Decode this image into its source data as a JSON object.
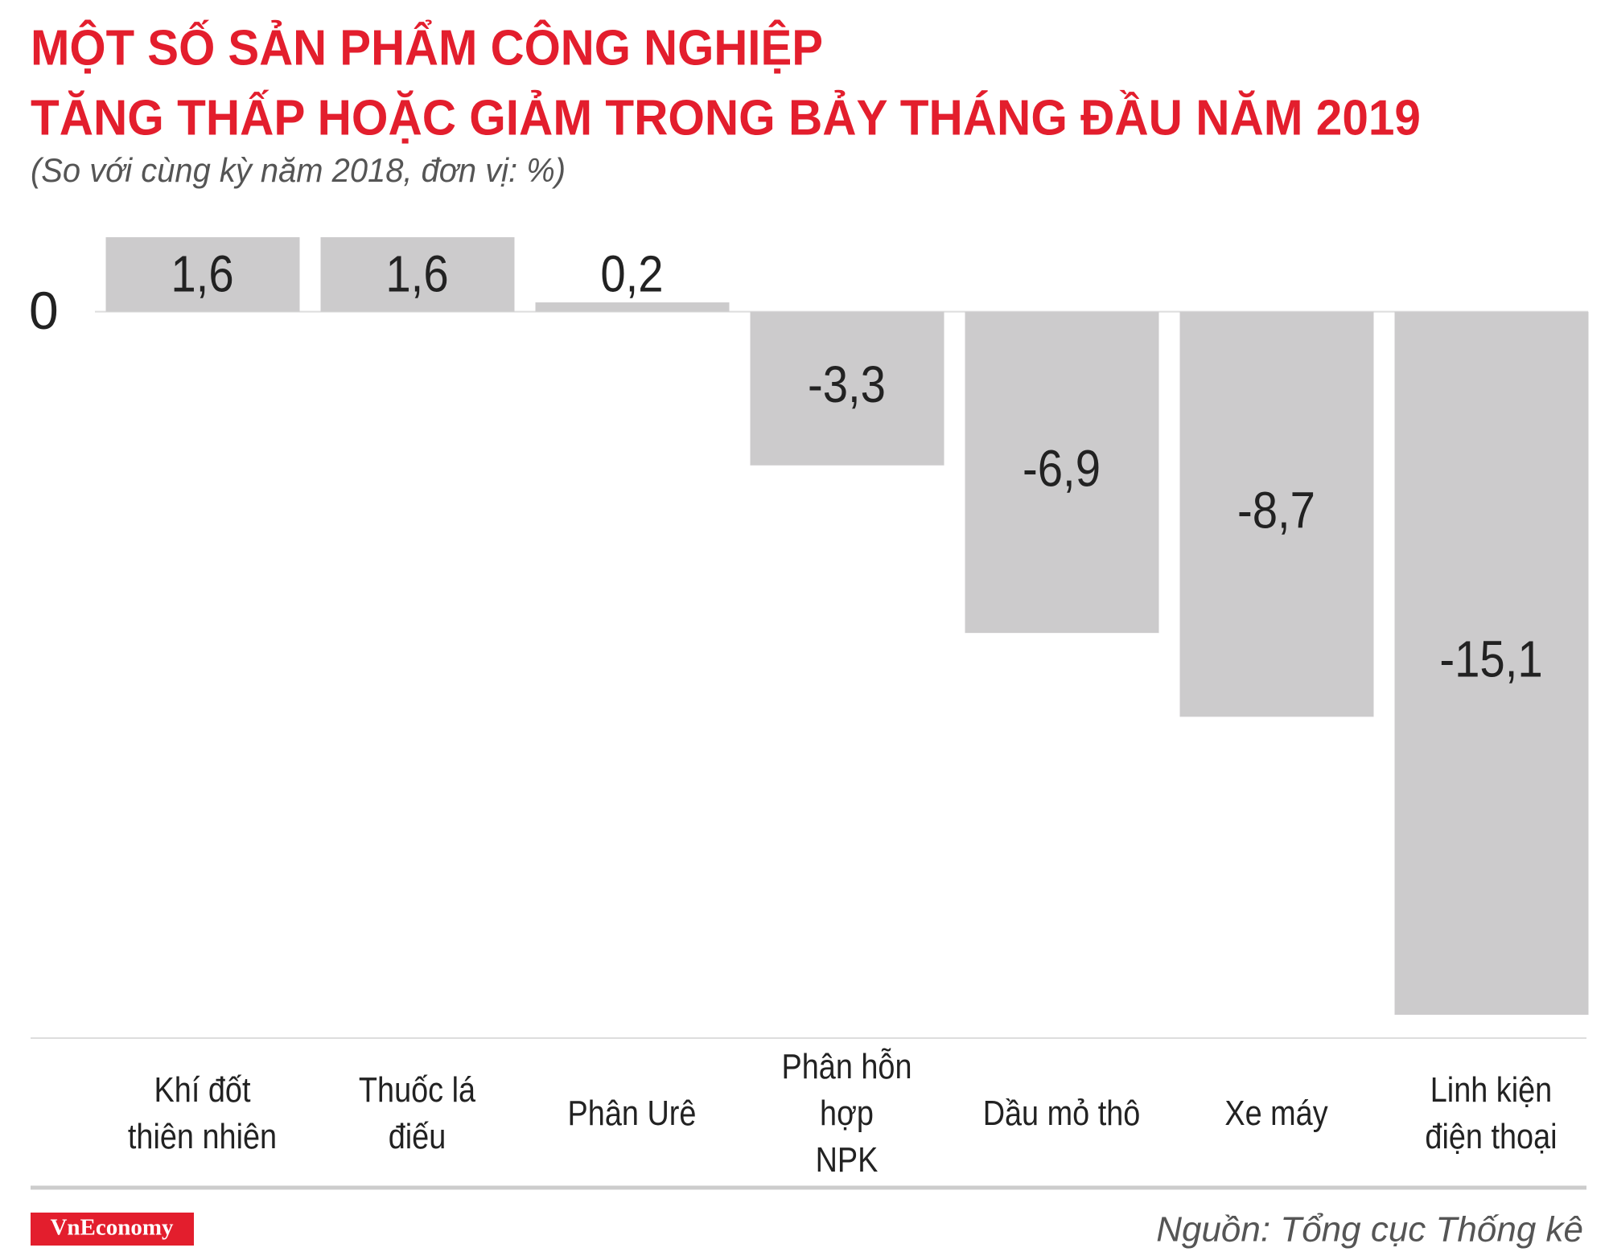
{
  "chart_data": {
    "type": "bar",
    "title": [
      "MỘT SỐ SẢN PHẨM CÔNG NGHIỆP",
      "TĂNG THẤP HOẶC GIẢM TRONG BẢY THÁNG ĐẦU NĂM 2019"
    ],
    "subtitle": "(So với cùng kỳ năm 2018, đơn vị: %)",
    "categories": [
      "Khí đốt\nthiên nhiên",
      "Thuốc lá\nđiếu",
      "Phân Urê",
      "Phân hỗn hợp\nNPK",
      "Dầu mỏ thô",
      "Xe máy",
      "Linh kiện\nđiện thoại"
    ],
    "values": [
      1.6,
      1.6,
      0.2,
      -3.3,
      -6.9,
      -8.7,
      -15.1
    ],
    "value_labels": [
      "1,6",
      "1,6",
      "0,2",
      "-3,3",
      "-6,9",
      "-8,7",
      "-15,1"
    ],
    "color": "#cccbcc",
    "ylim": [
      -15.1,
      1.6
    ],
    "yticks": [
      0
    ],
    "source": "Nguồn: Tổng cục Thống kê",
    "brand": "VnEconomy"
  }
}
